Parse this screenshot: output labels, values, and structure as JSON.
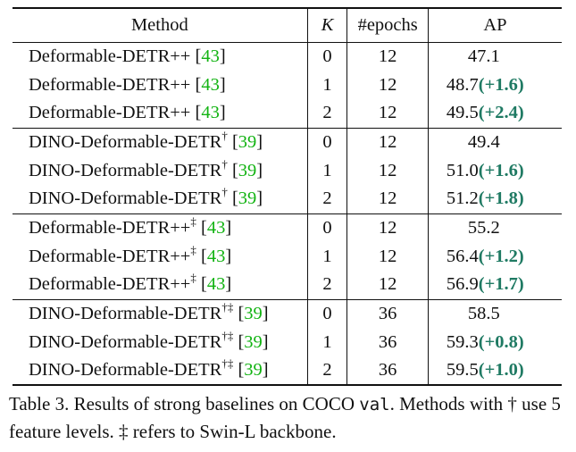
{
  "table": {
    "headers": {
      "method": "Method",
      "k": "K",
      "epochs": "#epochs",
      "ap": "AP"
    },
    "groups": [
      {
        "rows": [
          {
            "method": "Deformable-DETR++",
            "sup": "",
            "cite": "43",
            "k": "0",
            "epochs": "12",
            "ap": "47.1",
            "gain": ""
          },
          {
            "method": "Deformable-DETR++",
            "sup": "",
            "cite": "43",
            "k": "1",
            "epochs": "12",
            "ap": "48.7",
            "gain": "(+1.6)"
          },
          {
            "method": "Deformable-DETR++",
            "sup": "",
            "cite": "43",
            "k": "2",
            "epochs": "12",
            "ap": "49.5",
            "gain": "(+2.4)"
          }
        ]
      },
      {
        "rows": [
          {
            "method": "DINO-Deformable-DETR",
            "sup": "†",
            "cite": "39",
            "k": "0",
            "epochs": "12",
            "ap": "49.4",
            "gain": ""
          },
          {
            "method": "DINO-Deformable-DETR",
            "sup": "†",
            "cite": "39",
            "k": "1",
            "epochs": "12",
            "ap": "51.0",
            "gain": "(+1.6)"
          },
          {
            "method": "DINO-Deformable-DETR",
            "sup": "†",
            "cite": "39",
            "k": "2",
            "epochs": "12",
            "ap": "51.2",
            "gain": "(+1.8)"
          }
        ]
      },
      {
        "rows": [
          {
            "method": "Deformable-DETR++",
            "sup": "‡",
            "cite": "43",
            "k": "0",
            "epochs": "12",
            "ap": "55.2",
            "gain": ""
          },
          {
            "method": "Deformable-DETR++",
            "sup": "‡",
            "cite": "43",
            "k": "1",
            "epochs": "12",
            "ap": "56.4",
            "gain": "(+1.2)"
          },
          {
            "method": "Deformable-DETR++",
            "sup": "‡",
            "cite": "43",
            "k": "2",
            "epochs": "12",
            "ap": "56.9",
            "gain": "(+1.7)"
          }
        ]
      },
      {
        "rows": [
          {
            "method": "DINO-Deformable-DETR",
            "sup": "†‡",
            "cite": "39",
            "k": "0",
            "epochs": "36",
            "ap": "58.5",
            "gain": ""
          },
          {
            "method": "DINO-Deformable-DETR",
            "sup": "†‡",
            "cite": "39",
            "k": "1",
            "epochs": "36",
            "ap": "59.3",
            "gain": "(+0.8)"
          },
          {
            "method": "DINO-Deformable-DETR",
            "sup": "†‡",
            "cite": "39",
            "k": "2",
            "epochs": "36",
            "ap": "59.5",
            "gain": "(+1.0)"
          }
        ]
      }
    ]
  },
  "caption": {
    "part1": "Table 3. Results of strong baselines on COCO ",
    "code": "val",
    "part2": ". Methods with † use 5 feature levels. ‡ refers to Swin-L backbone."
  },
  "colors": {
    "citation": "#12b312",
    "gain": "#1f7a63"
  }
}
